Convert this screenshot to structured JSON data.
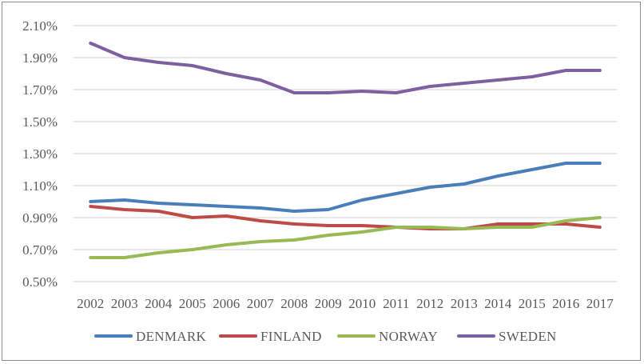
{
  "chart_data": {
    "type": "line",
    "title": "",
    "xlabel": "",
    "ylabel": "",
    "ylim": [
      0.5,
      2.1
    ],
    "y_ticks": [
      "0.50%",
      "0.70%",
      "0.90%",
      "1.10%",
      "1.30%",
      "1.50%",
      "1.70%",
      "1.90%",
      "2.10%"
    ],
    "y_tick_values": [
      0.5,
      0.7,
      0.9,
      1.1,
      1.3,
      1.5,
      1.7,
      1.9,
      2.1
    ],
    "grid": true,
    "legend_position": "bottom",
    "categories": [
      "2002",
      "2003",
      "2004",
      "2005",
      "2006",
      "2007",
      "2008",
      "2009",
      "2010",
      "2011",
      "2012",
      "2013",
      "2014",
      "2015",
      "2016",
      "2017"
    ],
    "series": [
      {
        "name": "DENMARK",
        "color": "#4A7EBB",
        "values": [
          1.0,
          1.01,
          0.99,
          0.98,
          0.97,
          0.96,
          0.94,
          0.95,
          1.01,
          1.05,
          1.09,
          1.11,
          1.16,
          1.2,
          1.24,
          1.24
        ]
      },
      {
        "name": "FINLAND",
        "color": "#BE4B48",
        "values": [
          0.97,
          0.95,
          0.94,
          0.9,
          0.91,
          0.88,
          0.86,
          0.85,
          0.85,
          0.84,
          0.83,
          0.83,
          0.86,
          0.86,
          0.86,
          0.84
        ]
      },
      {
        "name": "NORWAY",
        "color": "#98B954",
        "values": [
          0.65,
          0.65,
          0.68,
          0.7,
          0.73,
          0.75,
          0.76,
          0.79,
          0.81,
          0.84,
          0.84,
          0.83,
          0.84,
          0.84,
          0.88,
          0.9
        ]
      },
      {
        "name": "SWEDEN",
        "color": "#7D60A0",
        "values": [
          1.99,
          1.9,
          1.87,
          1.85,
          1.8,
          1.76,
          1.68,
          1.68,
          1.69,
          1.68,
          1.72,
          1.74,
          1.76,
          1.78,
          1.82,
          1.82
        ]
      }
    ]
  }
}
